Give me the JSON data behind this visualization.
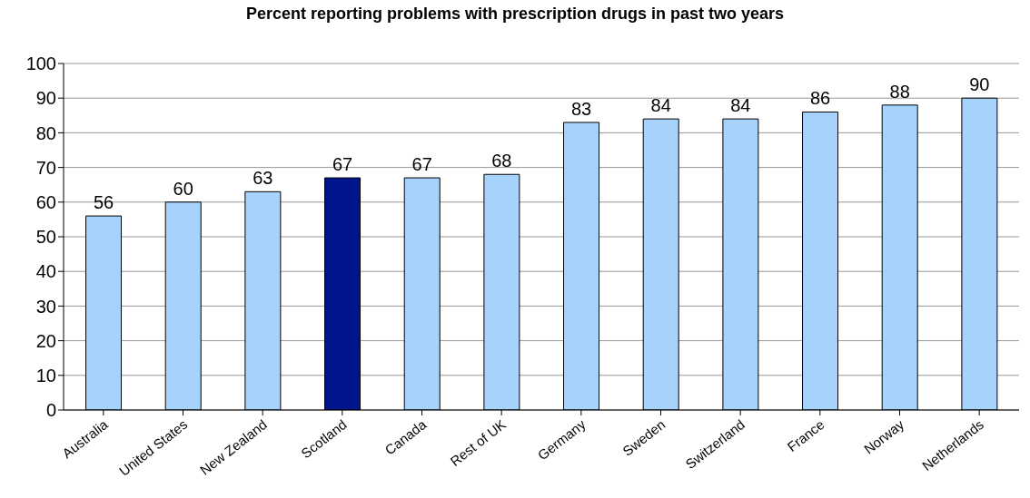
{
  "chart_data": {
    "type": "bar",
    "title": "Percent reporting problems with prescription drugs in past two years",
    "categories": [
      "Australia",
      "United States",
      "New Zealand",
      "Scotland",
      "Canada",
      "Rest of UK",
      "Germany",
      "Sweden",
      "Switzerland",
      "France",
      "Norway",
      "Netherlands"
    ],
    "values": [
      56,
      60,
      63,
      67,
      67,
      68,
      83,
      84,
      84,
      86,
      88,
      90
    ],
    "colors": [
      "#a6d2fb",
      "#a6d2fb",
      "#a6d2fb",
      "#00148c",
      "#a6d2fb",
      "#a6d2fb",
      "#a6d2fb",
      "#a6d2fb",
      "#a6d2fb",
      "#a6d2fb",
      "#a6d2fb",
      "#a6d2fb"
    ],
    "ylim": [
      0,
      100
    ],
    "yticks": [
      0,
      10,
      20,
      30,
      40,
      50,
      60,
      70,
      80,
      90,
      100
    ],
    "grid": "y",
    "data_labels": true
  }
}
